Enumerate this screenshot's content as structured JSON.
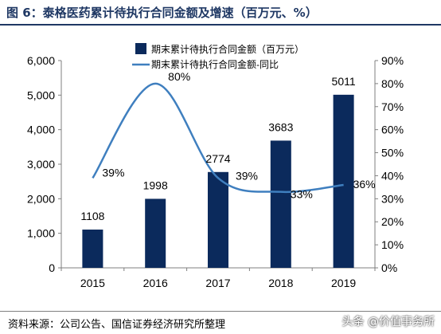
{
  "header": {
    "title": "图 6：泰格医药累计待执行合同金额及增速（百万元、%）"
  },
  "footer": {
    "source": "资料来源：公司公告、国信证券经济研究所整理",
    "watermark": "头条 @价值事务所"
  },
  "colors": {
    "bar": "#0b2a5c",
    "line": "#3f7fbf",
    "axis": "#7f7f7f",
    "title": "#1f3864"
  },
  "chart_data": {
    "type": "bar",
    "categories": [
      "2015",
      "2016",
      "2017",
      "2018",
      "2019"
    ],
    "series": [
      {
        "name": "期末累计待执行合同金额（百万元）",
        "type": "bar",
        "axis": "left",
        "values": [
          1108,
          1998,
          2774,
          3683,
          5011
        ],
        "labels": [
          "1108",
          "1998",
          "2774",
          "3683",
          "5011"
        ]
      },
      {
        "name": "期末累计待执行合同金额-同比",
        "type": "line",
        "axis": "right",
        "values": [
          39,
          80,
          39,
          33,
          36
        ],
        "labels": [
          "39%",
          "80%",
          "39%",
          "33%",
          "36%"
        ]
      }
    ],
    "y_left": {
      "min": 0,
      "max": 6000,
      "ticks": [
        "0",
        "1,000",
        "2,000",
        "3,000",
        "4,000",
        "5,000",
        "6,000"
      ]
    },
    "y_right": {
      "min": 0,
      "max": 90,
      "ticks": [
        "0%",
        "10%",
        "20%",
        "30%",
        "40%",
        "50%",
        "60%",
        "70%",
        "80%",
        "90%"
      ]
    },
    "legend_position": "top-center",
    "grid": false
  }
}
